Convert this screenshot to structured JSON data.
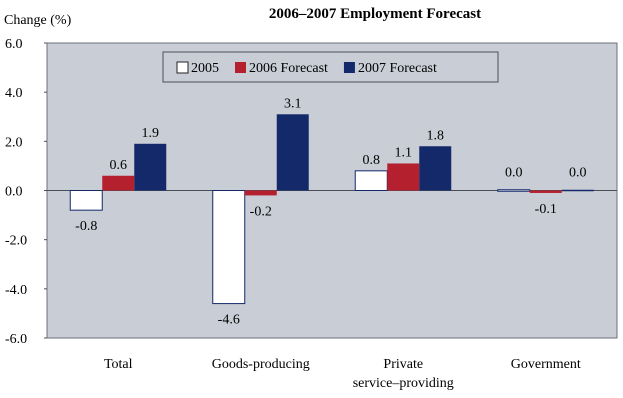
{
  "chart_data": {
    "type": "bar",
    "title": "2006–2007 Employment Forecast",
    "ylabel": "Change (%)",
    "xlabel": "",
    "ylim": [
      -6.0,
      6.0
    ],
    "yticks": [
      "6.0",
      "4.0",
      "2.0",
      "0.0",
      "-2.0",
      "-4.0",
      "-6.0"
    ],
    "categories": [
      [
        "Total"
      ],
      [
        "Goods-producing"
      ],
      [
        "Private",
        "service–providing"
      ],
      [
        "Government"
      ]
    ],
    "series": [
      {
        "name": "2005",
        "values": [
          -0.8,
          -4.6,
          0.8,
          0.0
        ],
        "labels": [
          "-0.8",
          "-4.6",
          "0.8",
          "0.0"
        ],
        "color": "#ffffff"
      },
      {
        "name": "2006 Forecast",
        "values": [
          0.6,
          -0.2,
          1.1,
          -0.1
        ],
        "labels": [
          "0.6",
          "-0.2",
          "1.1",
          "-0.1"
        ],
        "color": "#b5202e"
      },
      {
        "name": "2007 Forecast",
        "values": [
          1.9,
          3.1,
          1.8,
          0.0
        ],
        "labels": [
          "1.9",
          "3.1",
          "1.8",
          "0.0"
        ],
        "color": "#14296a"
      }
    ],
    "legend_position": "top",
    "grid": false,
    "plot_background": "#c9ced6"
  }
}
